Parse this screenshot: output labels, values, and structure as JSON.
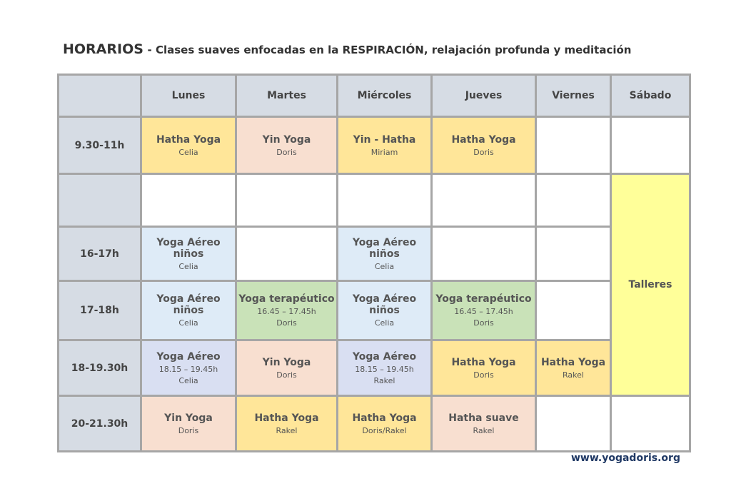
{
  "header": {
    "title": "HORARIOS",
    "subtitle": "- Clases suaves enfocadas en la RESPIRACIÓN, relajación profunda y meditación"
  },
  "table": {
    "columns": [
      "Lunes",
      "Martes",
      "Miércoles",
      "Jueves",
      "Viernes",
      "Sábado"
    ],
    "talleres": {
      "class": "Talleres",
      "color": "#ffff99"
    },
    "rows": [
      {
        "time": "9.30-11h",
        "cells": [
          {
            "class": "Hatha Yoga",
            "teacher": "Celia",
            "color": "#ffe699"
          },
          {
            "class": "Yin Yoga",
            "teacher": "Doris",
            "color": "#f8dfd0"
          },
          {
            "class": "Yin - Hatha",
            "teacher": "Miriam",
            "color": "#ffe699"
          },
          {
            "class": "Hatha Yoga",
            "teacher": "Doris",
            "color": "#ffe699"
          },
          null,
          null
        ]
      },
      {
        "time": null,
        "cells": [
          null,
          null,
          null,
          null,
          null
        ]
      },
      {
        "time": "16-17h",
        "cells": [
          {
            "class": "Yoga Aéreo niños",
            "teacher": "Celia",
            "color": "#deebf7"
          },
          null,
          {
            "class": "Yoga Aéreo niños",
            "teacher": "Celia",
            "color": "#deebf7"
          },
          null,
          null
        ]
      },
      {
        "time": "17-18h",
        "cells": [
          {
            "class": "Yoga Aéreo niños",
            "teacher": "Celia",
            "color": "#deebf7"
          },
          {
            "class": "Yoga terapéutico",
            "detail": "16.45 – 17.45h",
            "teacher": "Doris",
            "color": "#c9e2b8"
          },
          {
            "class": "Yoga Aéreo niños",
            "teacher": "Celia",
            "color": "#deebf7"
          },
          {
            "class": "Yoga terapéutico",
            "detail": "16.45 – 17.45h",
            "teacher": "Doris",
            "color": "#c9e2b8"
          },
          null
        ]
      },
      {
        "time": "18-19.30h",
        "cells": [
          {
            "class": "Yoga Aéreo",
            "detail": "18.15 – 19.45h",
            "teacher": "Celia",
            "color": "#d9dff2"
          },
          {
            "class": "Yin Yoga",
            "teacher": "Doris",
            "color": "#f8dfd0"
          },
          {
            "class": "Yoga Aéreo",
            "detail": "18.15 – 19.45h",
            "teacher": "Rakel",
            "color": "#d9dff2"
          },
          {
            "class": "Hatha Yoga",
            "teacher": "Doris",
            "color": "#ffe699"
          },
          {
            "class": "Hatha Yoga",
            "teacher": "Rakel",
            "color": "#ffe699"
          }
        ]
      },
      {
        "time": "20-21.30h",
        "cells": [
          {
            "class": "Yin Yoga",
            "teacher": "Doris",
            "color": "#f8dfd0"
          },
          {
            "class": "Hatha Yoga",
            "teacher": "Rakel",
            "color": "#ffe699"
          },
          {
            "class": "Hatha Yoga",
            "teacher": "Doris/Rakel",
            "color": "#ffe699"
          },
          {
            "class": "Hatha suave",
            "teacher": "Rakel",
            "color": "#f8dfd0"
          },
          null,
          null
        ]
      }
    ]
  },
  "footer": {
    "url": "www.yogadoris.org"
  }
}
